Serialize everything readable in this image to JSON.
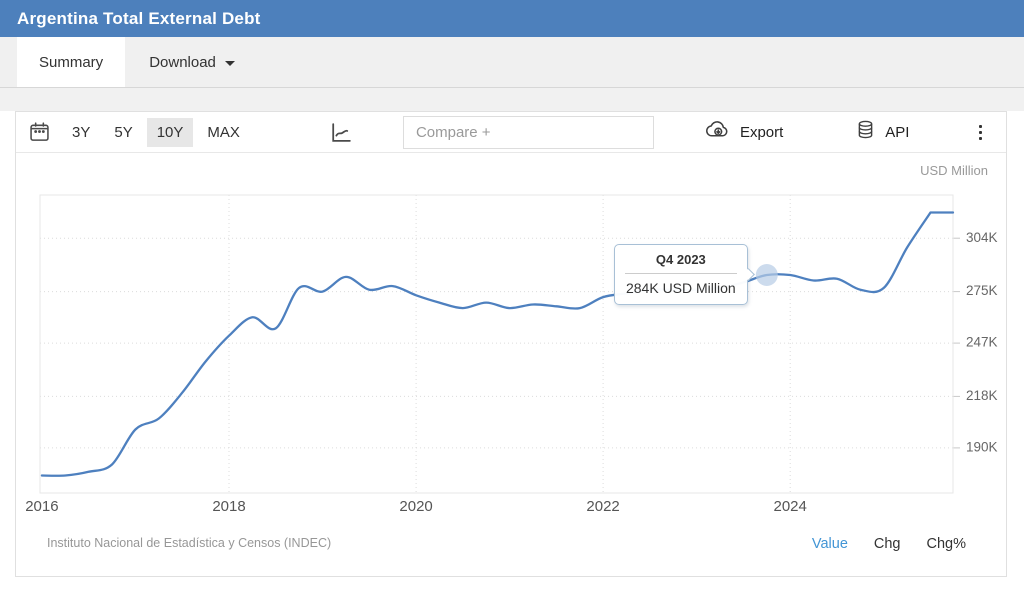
{
  "header": {
    "title": "Argentina Total External Debt"
  },
  "colors": {
    "header_bg": "#4d80bc",
    "line": "#4e80bf",
    "marker": "#b6cce6",
    "grid": "#dcdcdc",
    "plot_border": "#e7e7e7",
    "axis_text": "#666666",
    "legend_active": "#4295d5"
  },
  "tabs": [
    {
      "label": "Summary",
      "active": true
    },
    {
      "label": "Download",
      "active": false
    }
  ],
  "toolbar": {
    "ranges": [
      "3Y",
      "5Y",
      "10Y",
      "MAX"
    ],
    "active_range": "10Y",
    "compare_placeholder": "Compare +",
    "export_label": "Export",
    "api_label": "API"
  },
  "chart_data": {
    "type": "line",
    "title": "Argentina Total External Debt",
    "unit": "USD Million",
    "xlim": [
      2015.98,
      2025.74
    ],
    "ylim": [
      165.5,
      327.5
    ],
    "x_ticks": [
      2016,
      2018,
      2020,
      2022,
      2024
    ],
    "y_ticks": [
      {
        "v": 304,
        "label": "304K"
      },
      {
        "v": 275,
        "label": "275K"
      },
      {
        "v": 247,
        "label": "247K"
      },
      {
        "v": 218,
        "label": "218K"
      },
      {
        "v": 190,
        "label": "190K"
      }
    ],
    "series": [
      {
        "name": "Argentina Total External Debt",
        "unit": "K USD Million",
        "points": [
          {
            "q": "2016 Q1",
            "v": 175
          },
          {
            "q": "2016 Q2",
            "v": 175
          },
          {
            "q": "2016 Q3",
            "v": 177
          },
          {
            "q": "2016 Q4",
            "v": 181
          },
          {
            "q": "2017 Q1",
            "v": 200
          },
          {
            "q": "2017 Q2",
            "v": 206
          },
          {
            "q": "2017 Q3",
            "v": 220
          },
          {
            "q": "2017 Q4",
            "v": 237
          },
          {
            "q": "2018 Q1",
            "v": 251
          },
          {
            "q": "2018 Q2",
            "v": 261
          },
          {
            "q": "2018 Q3",
            "v": 255
          },
          {
            "q": "2018 Q4",
            "v": 277
          },
          {
            "q": "2019 Q1",
            "v": 275
          },
          {
            "q": "2019 Q2",
            "v": 283
          },
          {
            "q": "2019 Q3",
            "v": 276
          },
          {
            "q": "2019 Q4",
            "v": 278
          },
          {
            "q": "2020 Q1",
            "v": 273
          },
          {
            "q": "2020 Q2",
            "v": 269
          },
          {
            "q": "2020 Q3",
            "v": 266
          },
          {
            "q": "2020 Q4",
            "v": 269
          },
          {
            "q": "2021 Q1",
            "v": 266
          },
          {
            "q": "2021 Q2",
            "v": 268
          },
          {
            "q": "2021 Q3",
            "v": 267
          },
          {
            "q": "2021 Q4",
            "v": 266
          },
          {
            "q": "2022 Q1",
            "v": 272
          },
          {
            "q": "2022 Q2",
            "v": 274
          },
          {
            "q": "2022 Q3",
            "v": 276
          },
          {
            "q": "2022 Q4",
            "v": 276
          },
          {
            "q": "2023 Q1",
            "v": 276
          },
          {
            "q": "2023 Q2",
            "v": 277
          },
          {
            "q": "2023 Q3",
            "v": 280
          },
          {
            "q": "2023 Q4",
            "v": 284
          },
          {
            "q": "2024 Q1",
            "v": 284
          },
          {
            "q": "2024 Q2",
            "v": 281
          },
          {
            "q": "2024 Q3",
            "v": 282
          },
          {
            "q": "2024 Q4",
            "v": 276
          },
          {
            "q": "2025 Q1",
            "v": 277
          },
          {
            "q": "2025 Q2",
            "v": 299
          },
          {
            "q": "2025 Q3",
            "v": 318
          }
        ]
      }
    ],
    "tooltip": {
      "title": "Q4 2023",
      "value": "284K USD Million",
      "point_q": "2023 Q4"
    },
    "source": "Instituto Nacional de Estadística y Censos (INDEC)",
    "legend": [
      {
        "label": "Value",
        "color": "#4295d5",
        "active": true
      },
      {
        "label": "Chg",
        "color": "#333333",
        "active": false
      },
      {
        "label": "Chg%",
        "color": "#333333",
        "active": false
      }
    ],
    "grid": true,
    "legend_position": "bottom-right"
  }
}
